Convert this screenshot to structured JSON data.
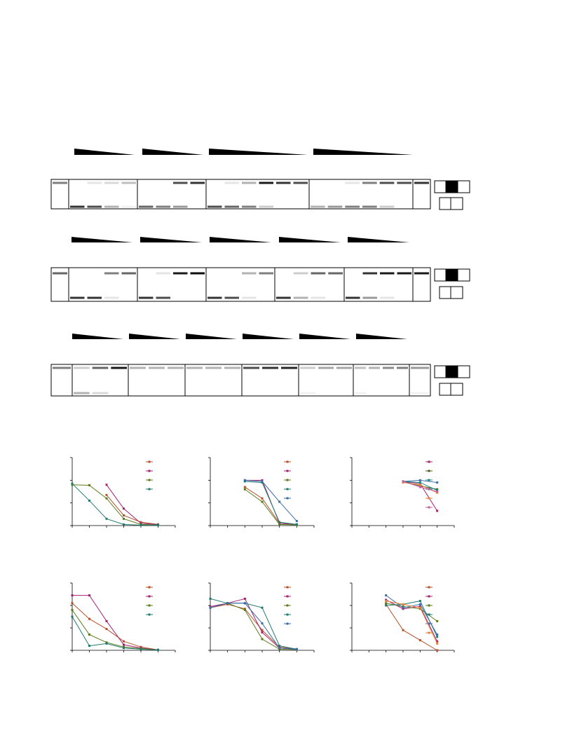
{
  "chart_data": [
    {
      "type": "line",
      "x": [
        0,
        1,
        2,
        3,
        4,
        5
      ],
      "xlim": [
        0,
        6
      ],
      "xticks": [
        0,
        1,
        2,
        3,
        4,
        5,
        6
      ],
      "ylim": [
        0,
        3
      ],
      "yticks": [
        0,
        1,
        2,
        3
      ],
      "series": [
        {
          "color": "#b5502a",
          "values": [
            null,
            null,
            1.35,
            0.45,
            0.15,
            0.05
          ]
        },
        {
          "color": "#a3206e",
          "values": [
            null,
            null,
            1.8,
            0.75,
            0.1,
            0.05
          ]
        },
        {
          "color": "#5a7a1a",
          "values": [
            1.8,
            1.78,
            1.2,
            0.3,
            0.05,
            0.03
          ]
        },
        {
          "color": "#1f7a6e",
          "values": [
            1.85,
            1.1,
            0.3,
            0.05,
            0.02,
            0.02
          ]
        }
      ]
    },
    {
      "type": "line",
      "x": [
        0,
        1,
        2,
        3,
        4,
        5
      ],
      "xlim": [
        0,
        6
      ],
      "xticks": [
        0,
        1,
        2,
        3,
        4,
        5,
        6
      ],
      "ylim": [
        0,
        3
      ],
      "yticks": [
        0,
        1,
        2,
        3
      ],
      "series": [
        {
          "color": "#b5502a",
          "values": [
            null,
            null,
            1.7,
            1.2,
            0.1,
            0.05
          ]
        },
        {
          "color": "#a3206e",
          "values": [
            null,
            null,
            2,
            2,
            0.1,
            0.05
          ]
        },
        {
          "color": "#5a7a1a",
          "values": [
            null,
            null,
            1.6,
            1.05,
            0.05,
            0.03
          ]
        },
        {
          "color": "#1f7a6e",
          "values": [
            null,
            null,
            1.95,
            1.9,
            0.15,
            0.05
          ]
        },
        {
          "color": "#3a6aa8",
          "values": [
            null,
            null,
            2,
            1.95,
            1.05,
            0.2
          ]
        }
      ]
    },
    {
      "type": "line",
      "x": [
        0,
        1,
        2,
        3,
        4,
        5
      ],
      "xlim": [
        0,
        6
      ],
      "xticks": [
        0,
        1,
        2,
        3,
        4,
        5,
        6
      ],
      "ylim": [
        0,
        3
      ],
      "yticks": [
        0,
        1,
        2,
        3
      ],
      "series": [
        {
          "color": "#a3206e",
          "values": [
            null,
            null,
            null,
            1.95,
            1.85,
            0.65
          ]
        },
        {
          "color": "#4a5a1a",
          "values": [
            null,
            null,
            null,
            1.95,
            1.75,
            1.6
          ]
        },
        {
          "color": "#1f8a80",
          "values": [
            null,
            null,
            null,
            1.95,
            1.9,
            1.55
          ]
        },
        {
          "color": "#3a6aa8",
          "values": [
            null,
            null,
            null,
            1.95,
            2,
            1.9
          ]
        },
        {
          "color": "#e8803a",
          "values": [
            null,
            null,
            null,
            1.9,
            1.8,
            1.45
          ]
        },
        {
          "color": "#c060a0",
          "values": [
            null,
            null,
            null,
            1.95,
            1.7,
            1.5
          ]
        }
      ]
    },
    {
      "type": "line",
      "x": [
        0,
        1,
        2,
        3,
        4,
        5
      ],
      "xlim": [
        0,
        6
      ],
      "xticks": [
        0,
        1,
        2,
        3,
        4,
        5,
        6
      ],
      "ylim": [
        0,
        3
      ],
      "yticks": [
        0,
        1,
        2,
        3
      ],
      "series": [
        {
          "color": "#b5502a",
          "values": [
            2.1,
            1.4,
            0.95,
            0.4,
            0.15,
            0.02
          ]
        },
        {
          "color": "#a3206e",
          "values": [
            2.45,
            2.45,
            1.3,
            0.25,
            0.1,
            0.02
          ]
        },
        {
          "color": "#5a7a1a",
          "values": [
            1.8,
            0.7,
            0.35,
            0.15,
            0.08,
            0.02
          ]
        },
        {
          "color": "#1f7a6e",
          "values": [
            1.5,
            0.2,
            0.3,
            0.1,
            0.05,
            0.02
          ]
        }
      ]
    },
    {
      "type": "line",
      "x": [
        0,
        1,
        2,
        3,
        4,
        5
      ],
      "xlim": [
        0,
        6
      ],
      "xticks": [
        0,
        1,
        2,
        3,
        4,
        5,
        6
      ],
      "ylim": [
        0,
        3
      ],
      "yticks": [
        0,
        1,
        2,
        3
      ],
      "series": [
        {
          "color": "#b5502a",
          "values": [
            1.9,
            2.05,
            1.85,
            0.9,
            0.15,
            0.05
          ]
        },
        {
          "color": "#a3206e",
          "values": [
            1.95,
            2.1,
            2.3,
            0.8,
            0.1,
            0.05
          ]
        },
        {
          "color": "#5a7a1a",
          "values": [
            1.9,
            2.1,
            1.8,
            0.5,
            0.05,
            0.03
          ]
        },
        {
          "color": "#1f7a6e",
          "values": [
            2.3,
            2.1,
            2.1,
            1.9,
            0.2,
            0.05
          ]
        },
        {
          "color": "#3a6aa8",
          "values": [
            1.9,
            2.1,
            2.1,
            1.2,
            0.1,
            0.05
          ]
        }
      ]
    },
    {
      "type": "line",
      "x": [
        0,
        1,
        2,
        3,
        4,
        5
      ],
      "xlim": [
        0,
        6
      ],
      "xticks": [
        0,
        1,
        2,
        3,
        4,
        5,
        6
      ],
      "ylim": [
        0,
        3
      ],
      "yticks": [
        0,
        1,
        2,
        3
      ],
      "series": [
        {
          "color": "#b5502a",
          "values": [
            null,
            null,
            2.05,
            0.9,
            0.45,
            0
          ]
        },
        {
          "color": "#a3206e",
          "values": [
            null,
            null,
            2.25,
            1.85,
            1.95,
            0.4
          ]
        },
        {
          "color": "#5a7a1a",
          "values": [
            null,
            null,
            2.1,
            1.95,
            1.85,
            1.3
          ]
        },
        {
          "color": "#1f7a6e",
          "values": [
            null,
            null,
            2,
            2.05,
            2.2,
            0.6
          ]
        },
        {
          "color": "#3a6aa8",
          "values": [
            null,
            null,
            2.45,
            1.9,
            2.05,
            0.7
          ]
        },
        {
          "color": "#e8803a",
          "values": [
            null,
            null,
            2.2,
            2.05,
            1.9,
            0.3
          ]
        }
      ]
    }
  ]
}
